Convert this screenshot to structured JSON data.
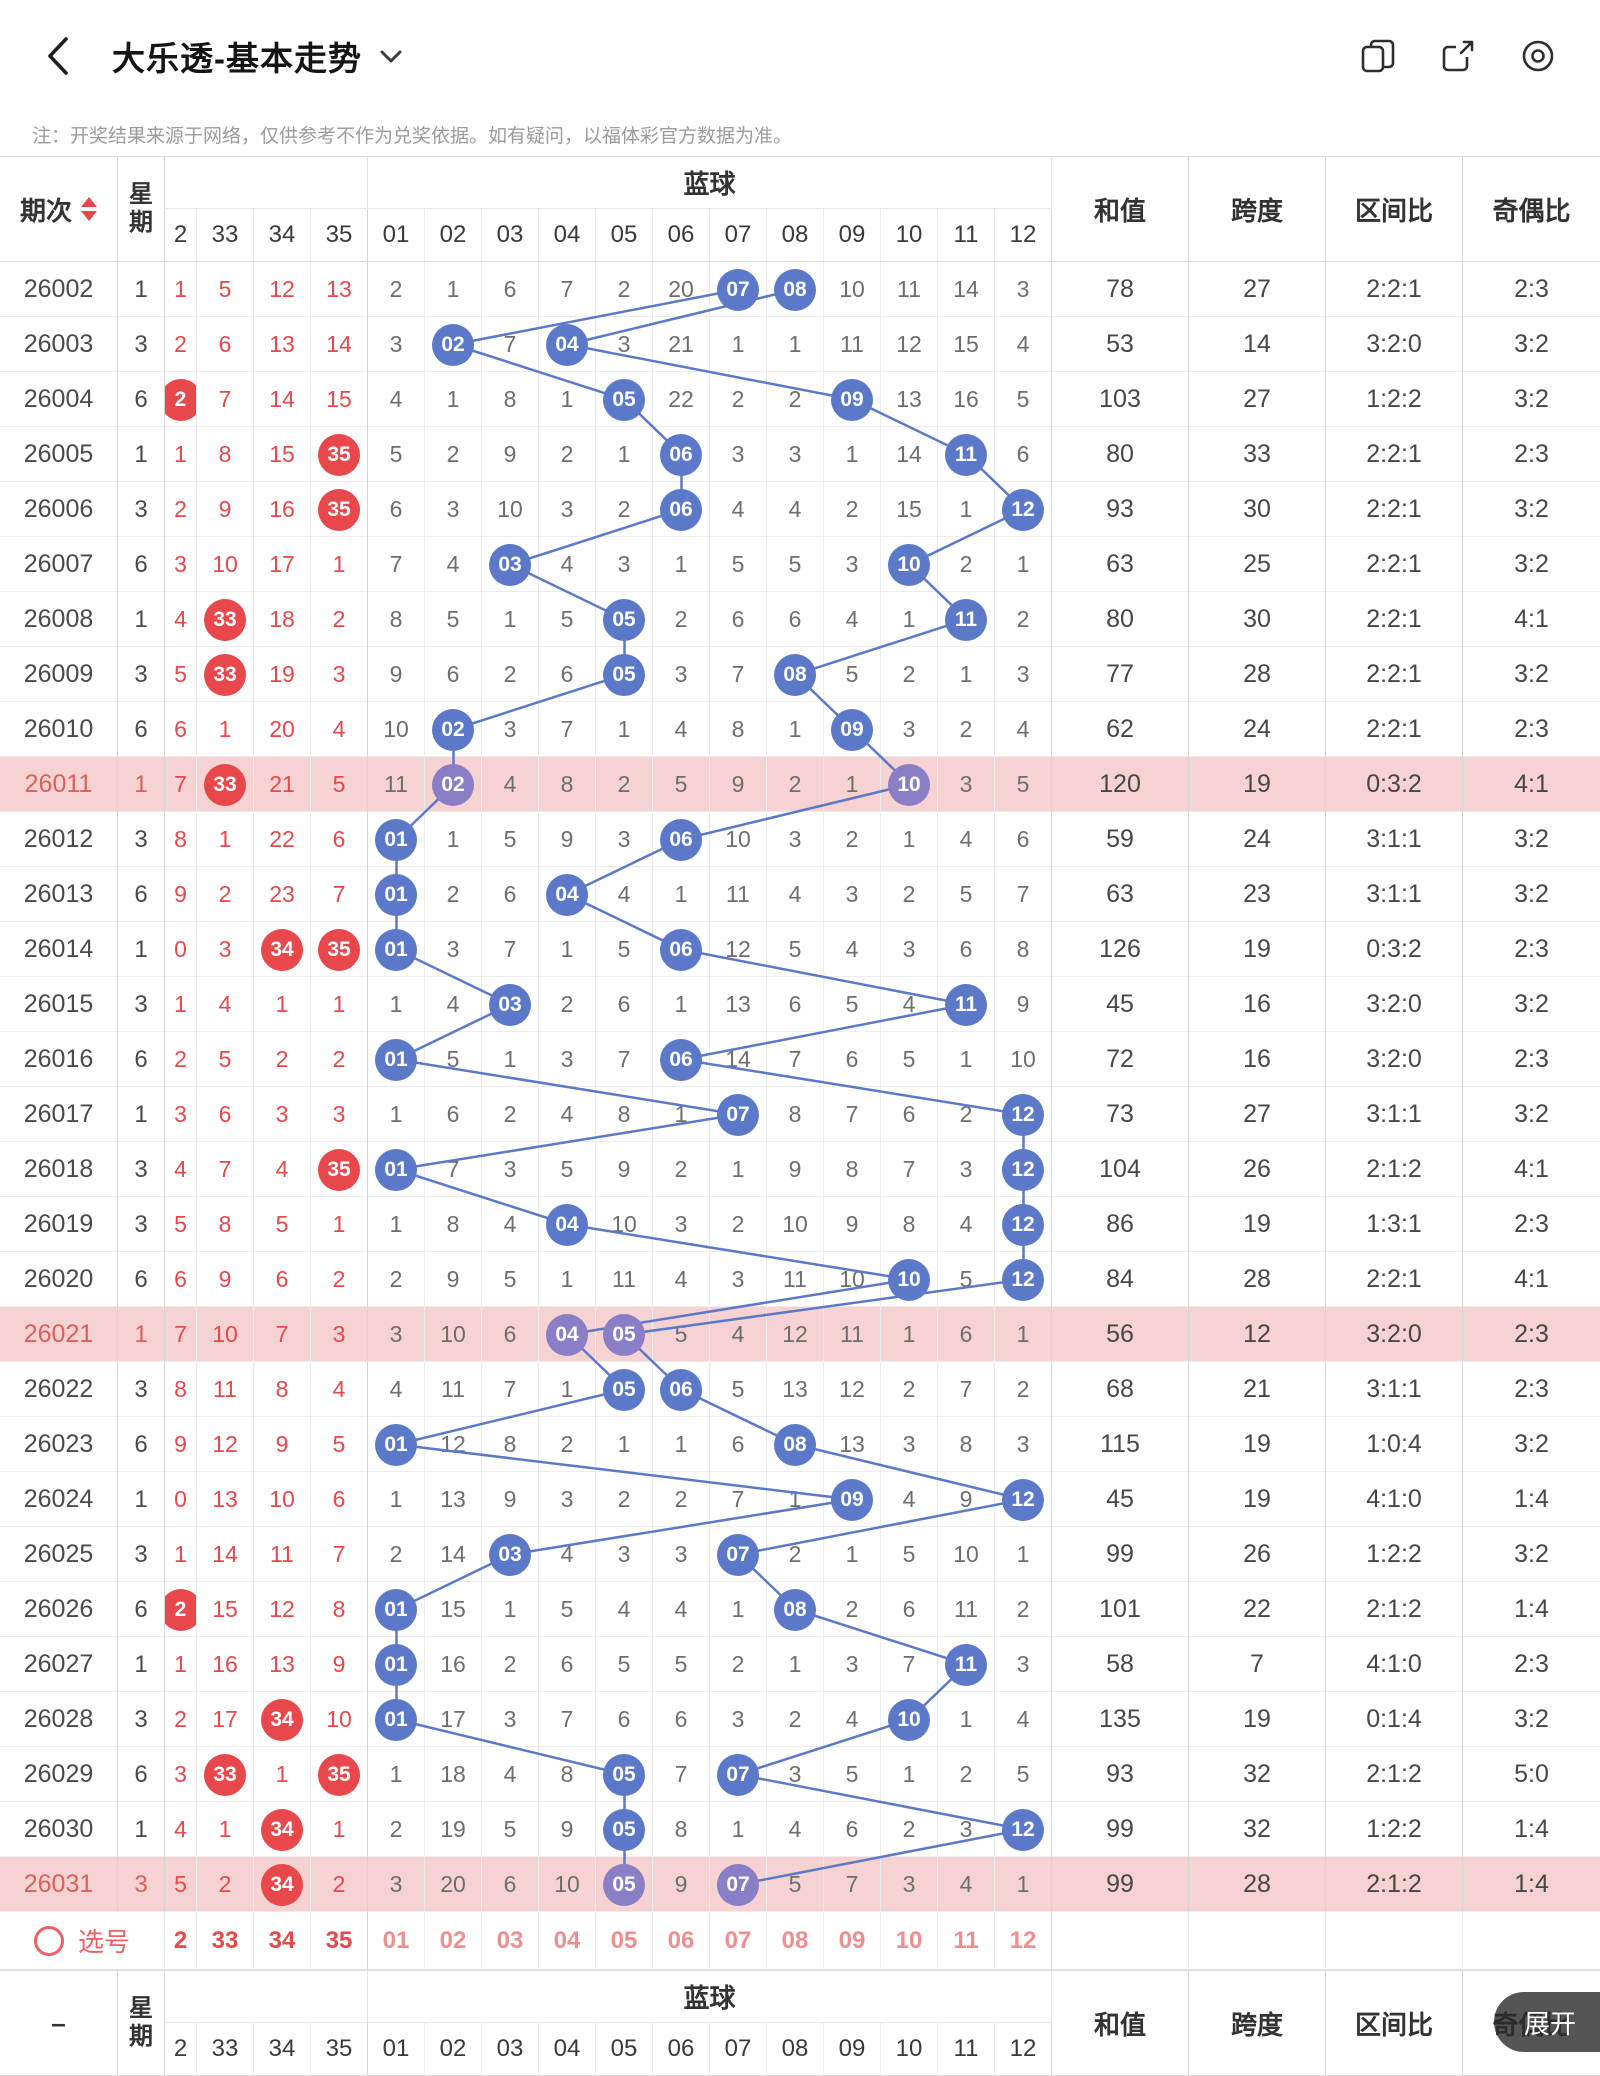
{
  "nav": {
    "title": "大乐透-基本走势",
    "icon_names": [
      "back-icon",
      "chevron-down-icon",
      "switch-chart-icon",
      "share-icon",
      "record-icon"
    ]
  },
  "note": "注：开奖结果来源于网络，仅供参考不作为兑奖依据。如有疑问，以福体彩官方数据为准。",
  "expand": {
    "label": "展开"
  },
  "colors": {
    "accent_red": "#e8474b",
    "ball_blue": "#5b79c8",
    "ball_blue_highlight": "#8a7ec6",
    "trend_line": "#5b79c8",
    "row_highlight": "#f6d2d2",
    "miss_blue_text": "#6e6e6e"
  },
  "table": {
    "headers": {
      "period": "期次",
      "week": "星期",
      "blue_group": "蓝球",
      "red_cols": [
        "2",
        "33",
        "34",
        "35"
      ],
      "blue_cols": [
        "01",
        "02",
        "03",
        "04",
        "05",
        "06",
        "07",
        "08",
        "09",
        "10",
        "11",
        "12"
      ],
      "sum": "和值",
      "span": "跨度",
      "zone_ratio": "区间比",
      "odd_even": "奇偶比"
    },
    "footer_dash": "–",
    "pick_label": "选号",
    "rows": [
      {
        "period": "26002",
        "week": "1",
        "red": [
          "1",
          "5",
          "12",
          "13"
        ],
        "red_hits": [],
        "blue": [
          "2",
          "1",
          "6",
          "7",
          "2",
          "20",
          "07",
          "08",
          "10",
          "11",
          "14",
          "3"
        ],
        "blue_hits": [
          6,
          7
        ],
        "sum": "78",
        "span": "27",
        "zone": "2:2:1",
        "oe": "2:3",
        "hl": false
      },
      {
        "period": "26003",
        "week": "3",
        "red": [
          "2",
          "6",
          "13",
          "14"
        ],
        "red_hits": [],
        "blue": [
          "3",
          "02",
          "7",
          "04",
          "3",
          "21",
          "1",
          "1",
          "11",
          "12",
          "15",
          "4"
        ],
        "blue_hits": [
          1,
          3
        ],
        "sum": "53",
        "span": "14",
        "zone": "3:2:0",
        "oe": "3:2",
        "hl": false
      },
      {
        "period": "26004",
        "week": "6",
        "red": [
          "2",
          "7",
          "14",
          "15"
        ],
        "red_hits": [
          0
        ],
        "blue": [
          "4",
          "1",
          "8",
          "1",
          "05",
          "22",
          "2",
          "2",
          "09",
          "13",
          "16",
          "5"
        ],
        "blue_hits": [
          4,
          8
        ],
        "sum": "103",
        "span": "27",
        "zone": "1:2:2",
        "oe": "3:2",
        "hl": false
      },
      {
        "period": "26005",
        "week": "1",
        "red": [
          "1",
          "8",
          "15",
          "35"
        ],
        "red_hits": [
          3
        ],
        "blue": [
          "5",
          "2",
          "9",
          "2",
          "1",
          "06",
          "3",
          "3",
          "1",
          "14",
          "11",
          "6"
        ],
        "blue_hits": [
          5,
          10
        ],
        "sum": "80",
        "span": "33",
        "zone": "2:2:1",
        "oe": "2:3",
        "hl": false
      },
      {
        "period": "26006",
        "week": "3",
        "red": [
          "2",
          "9",
          "16",
          "35"
        ],
        "red_hits": [
          3
        ],
        "blue": [
          "6",
          "3",
          "10",
          "3",
          "2",
          "06",
          "4",
          "4",
          "2",
          "15",
          "1",
          "12"
        ],
        "blue_hits": [
          5,
          11
        ],
        "sum": "93",
        "span": "30",
        "zone": "2:2:1",
        "oe": "3:2",
        "hl": false
      },
      {
        "period": "26007",
        "week": "6",
        "red": [
          "3",
          "10",
          "17",
          "1"
        ],
        "red_hits": [],
        "blue": [
          "7",
          "4",
          "03",
          "4",
          "3",
          "1",
          "5",
          "5",
          "3",
          "10",
          "2",
          "1"
        ],
        "blue_hits": [
          2,
          9
        ],
        "sum": "63",
        "span": "25",
        "zone": "2:2:1",
        "oe": "3:2",
        "hl": false
      },
      {
        "period": "26008",
        "week": "1",
        "red": [
          "4",
          "33",
          "18",
          "2"
        ],
        "red_hits": [
          1
        ],
        "blue": [
          "8",
          "5",
          "1",
          "5",
          "05",
          "2",
          "6",
          "6",
          "4",
          "1",
          "11",
          "2"
        ],
        "blue_hits": [
          4,
          10
        ],
        "sum": "80",
        "span": "30",
        "zone": "2:2:1",
        "oe": "4:1",
        "hl": false
      },
      {
        "period": "26009",
        "week": "3",
        "red": [
          "5",
          "33",
          "19",
          "3"
        ],
        "red_hits": [
          1
        ],
        "blue": [
          "9",
          "6",
          "2",
          "6",
          "05",
          "3",
          "7",
          "08",
          "5",
          "2",
          "1",
          "3"
        ],
        "blue_hits": [
          4,
          7
        ],
        "sum": "77",
        "span": "28",
        "zone": "2:2:1",
        "oe": "3:2",
        "hl": false
      },
      {
        "period": "26010",
        "week": "6",
        "red": [
          "6",
          "1",
          "20",
          "4"
        ],
        "red_hits": [],
        "blue": [
          "10",
          "02",
          "3",
          "7",
          "1",
          "4",
          "8",
          "1",
          "09",
          "3",
          "2",
          "4"
        ],
        "blue_hits": [
          1,
          8
        ],
        "sum": "62",
        "span": "24",
        "zone": "2:2:1",
        "oe": "2:3",
        "hl": false
      },
      {
        "period": "26011",
        "week": "1",
        "red": [
          "7",
          "33",
          "21",
          "5"
        ],
        "red_hits": [
          1
        ],
        "blue": [
          "11",
          "02",
          "4",
          "8",
          "2",
          "5",
          "9",
          "2",
          "1",
          "10",
          "3",
          "5"
        ],
        "blue_hits": [
          1,
          9
        ],
        "sum": "120",
        "span": "19",
        "zone": "0:3:2",
        "oe": "4:1",
        "hl": true
      },
      {
        "period": "26012",
        "week": "3",
        "red": [
          "8",
          "1",
          "22",
          "6"
        ],
        "red_hits": [],
        "blue": [
          "01",
          "1",
          "5",
          "9",
          "3",
          "06",
          "10",
          "3",
          "2",
          "1",
          "4",
          "6"
        ],
        "blue_hits": [
          0,
          5
        ],
        "sum": "59",
        "span": "24",
        "zone": "3:1:1",
        "oe": "3:2",
        "hl": false
      },
      {
        "period": "26013",
        "week": "6",
        "red": [
          "9",
          "2",
          "23",
          "7"
        ],
        "red_hits": [],
        "blue": [
          "01",
          "2",
          "6",
          "04",
          "4",
          "1",
          "11",
          "4",
          "3",
          "2",
          "5",
          "7"
        ],
        "blue_hits": [
          0,
          3
        ],
        "sum": "63",
        "span": "23",
        "zone": "3:1:1",
        "oe": "3:2",
        "hl": false
      },
      {
        "period": "26014",
        "week": "1",
        "red": [
          "0",
          "3",
          "34",
          "35"
        ],
        "red_hits": [
          2,
          3
        ],
        "blue": [
          "01",
          "3",
          "7",
          "1",
          "5",
          "06",
          "12",
          "5",
          "4",
          "3",
          "6",
          "8"
        ],
        "blue_hits": [
          0,
          5
        ],
        "sum": "126",
        "span": "19",
        "zone": "0:3:2",
        "oe": "2:3",
        "hl": false
      },
      {
        "period": "26015",
        "week": "3",
        "red": [
          "1",
          "4",
          "1",
          "1"
        ],
        "red_hits": [],
        "blue": [
          "1",
          "4",
          "03",
          "2",
          "6",
          "1",
          "13",
          "6",
          "5",
          "4",
          "11",
          "9"
        ],
        "blue_hits": [
          2,
          10
        ],
        "sum": "45",
        "span": "16",
        "zone": "3:2:0",
        "oe": "3:2",
        "hl": false
      },
      {
        "period": "26016",
        "week": "6",
        "red": [
          "2",
          "5",
          "2",
          "2"
        ],
        "red_hits": [],
        "blue": [
          "01",
          "5",
          "1",
          "3",
          "7",
          "06",
          "14",
          "7",
          "6",
          "5",
          "1",
          "10"
        ],
        "blue_hits": [
          0,
          5
        ],
        "sum": "72",
        "span": "16",
        "zone": "3:2:0",
        "oe": "2:3",
        "hl": false
      },
      {
        "period": "26017",
        "week": "1",
        "red": [
          "3",
          "6",
          "3",
          "3"
        ],
        "red_hits": [],
        "blue": [
          "1",
          "6",
          "2",
          "4",
          "8",
          "1",
          "07",
          "8",
          "7",
          "6",
          "2",
          "12"
        ],
        "blue_hits": [
          6,
          11
        ],
        "sum": "73",
        "span": "27",
        "zone": "3:1:1",
        "oe": "3:2",
        "hl": false
      },
      {
        "period": "26018",
        "week": "3",
        "red": [
          "4",
          "7",
          "4",
          "35"
        ],
        "red_hits": [
          3
        ],
        "blue": [
          "01",
          "7",
          "3",
          "5",
          "9",
          "2",
          "1",
          "9",
          "8",
          "7",
          "3",
          "12"
        ],
        "blue_hits": [
          0,
          11
        ],
        "sum": "104",
        "span": "26",
        "zone": "2:1:2",
        "oe": "4:1",
        "hl": false
      },
      {
        "period": "26019",
        "week": "3",
        "red": [
          "5",
          "8",
          "5",
          "1"
        ],
        "red_hits": [],
        "blue": [
          "1",
          "8",
          "4",
          "04",
          "10",
          "3",
          "2",
          "10",
          "9",
          "8",
          "4",
          "12"
        ],
        "blue_hits": [
          3,
          11
        ],
        "sum": "86",
        "span": "19",
        "zone": "1:3:1",
        "oe": "2:3",
        "hl": false
      },
      {
        "period": "26020",
        "week": "6",
        "red": [
          "6",
          "9",
          "6",
          "2"
        ],
        "red_hits": [],
        "blue": [
          "2",
          "9",
          "5",
          "1",
          "11",
          "4",
          "3",
          "11",
          "10",
          "10",
          "5",
          "12"
        ],
        "blue_hits": [
          9,
          11
        ],
        "sum": "84",
        "span": "28",
        "zone": "2:2:1",
        "oe": "4:1",
        "hl": false
      },
      {
        "period": "26021",
        "week": "1",
        "red": [
          "7",
          "10",
          "7",
          "3"
        ],
        "red_hits": [],
        "blue": [
          "3",
          "10",
          "6",
          "04",
          "05",
          "5",
          "4",
          "12",
          "11",
          "1",
          "6",
          "1"
        ],
        "blue_hits": [
          3,
          4
        ],
        "sum": "56",
        "span": "12",
        "zone": "3:2:0",
        "oe": "2:3",
        "hl": true
      },
      {
        "period": "26022",
        "week": "3",
        "red": [
          "8",
          "11",
          "8",
          "4"
        ],
        "red_hits": [],
        "blue": [
          "4",
          "11",
          "7",
          "1",
          "05",
          "06",
          "5",
          "13",
          "12",
          "2",
          "7",
          "2"
        ],
        "blue_hits": [
          4,
          5
        ],
        "sum": "68",
        "span": "21",
        "zone": "3:1:1",
        "oe": "2:3",
        "hl": false
      },
      {
        "period": "26023",
        "week": "6",
        "red": [
          "9",
          "12",
          "9",
          "5"
        ],
        "red_hits": [],
        "blue": [
          "01",
          "12",
          "8",
          "2",
          "1",
          "1",
          "6",
          "08",
          "13",
          "3",
          "8",
          "3"
        ],
        "blue_hits": [
          0,
          7
        ],
        "sum": "115",
        "span": "19",
        "zone": "1:0:4",
        "oe": "3:2",
        "hl": false
      },
      {
        "period": "26024",
        "week": "1",
        "red": [
          "0",
          "13",
          "10",
          "6"
        ],
        "red_hits": [],
        "blue": [
          "1",
          "13",
          "9",
          "3",
          "2",
          "2",
          "7",
          "1",
          "09",
          "4",
          "9",
          "12"
        ],
        "blue_hits": [
          8,
          11
        ],
        "sum": "45",
        "span": "19",
        "zone": "4:1:0",
        "oe": "1:4",
        "hl": false
      },
      {
        "period": "26025",
        "week": "3",
        "red": [
          "1",
          "14",
          "11",
          "7"
        ],
        "red_hits": [],
        "blue": [
          "2",
          "14",
          "03",
          "4",
          "3",
          "3",
          "07",
          "2",
          "1",
          "5",
          "10",
          "1"
        ],
        "blue_hits": [
          2,
          6
        ],
        "sum": "99",
        "span": "26",
        "zone": "1:2:2",
        "oe": "3:2",
        "hl": false
      },
      {
        "period": "26026",
        "week": "6",
        "red": [
          "2",
          "15",
          "12",
          "8"
        ],
        "red_hits": [
          0
        ],
        "blue": [
          "01",
          "15",
          "1",
          "5",
          "4",
          "4",
          "1",
          "08",
          "2",
          "6",
          "11",
          "2"
        ],
        "blue_hits": [
          0,
          7
        ],
        "sum": "101",
        "span": "22",
        "zone": "2:1:2",
        "oe": "1:4",
        "hl": false
      },
      {
        "period": "26027",
        "week": "1",
        "red": [
          "1",
          "16",
          "13",
          "9"
        ],
        "red_hits": [],
        "blue": [
          "01",
          "16",
          "2",
          "6",
          "5",
          "5",
          "2",
          "1",
          "3",
          "7",
          "11",
          "3"
        ],
        "blue_hits": [
          0,
          10
        ],
        "sum": "58",
        "span": "7",
        "zone": "4:1:0",
        "oe": "2:3",
        "hl": false
      },
      {
        "period": "26028",
        "week": "3",
        "red": [
          "2",
          "17",
          "34",
          "10"
        ],
        "red_hits": [
          2
        ],
        "blue": [
          "01",
          "17",
          "3",
          "7",
          "6",
          "6",
          "3",
          "2",
          "4",
          "10",
          "1",
          "4"
        ],
        "blue_hits": [
          0,
          9
        ],
        "sum": "135",
        "span": "19",
        "zone": "0:1:4",
        "oe": "3:2",
        "hl": false
      },
      {
        "period": "26029",
        "week": "6",
        "red": [
          "3",
          "33",
          "1",
          "35"
        ],
        "red_hits": [
          1,
          3
        ],
        "blue": [
          "1",
          "18",
          "4",
          "8",
          "05",
          "7",
          "07",
          "3",
          "5",
          "1",
          "2",
          "5"
        ],
        "blue_hits": [
          4,
          6
        ],
        "sum": "93",
        "span": "32",
        "zone": "2:1:2",
        "oe": "5:0",
        "hl": false
      },
      {
        "period": "26030",
        "week": "1",
        "red": [
          "4",
          "1",
          "34",
          "1"
        ],
        "red_hits": [
          2
        ],
        "blue": [
          "2",
          "19",
          "5",
          "9",
          "05",
          "8",
          "1",
          "4",
          "6",
          "2",
          "3",
          "12"
        ],
        "blue_hits": [
          4,
          11
        ],
        "sum": "99",
        "span": "32",
        "zone": "1:2:2",
        "oe": "1:4",
        "hl": false
      },
      {
        "period": "26031",
        "week": "3",
        "red": [
          "5",
          "2",
          "34",
          "2"
        ],
        "red_hits": [
          2
        ],
        "blue": [
          "3",
          "20",
          "6",
          "10",
          "05",
          "9",
          "07",
          "5",
          "7",
          "3",
          "4",
          "1"
        ],
        "blue_hits": [
          4,
          6
        ],
        "sum": "99",
        "span": "28",
        "zone": "2:1:2",
        "oe": "1:4",
        "hl": true
      }
    ]
  }
}
